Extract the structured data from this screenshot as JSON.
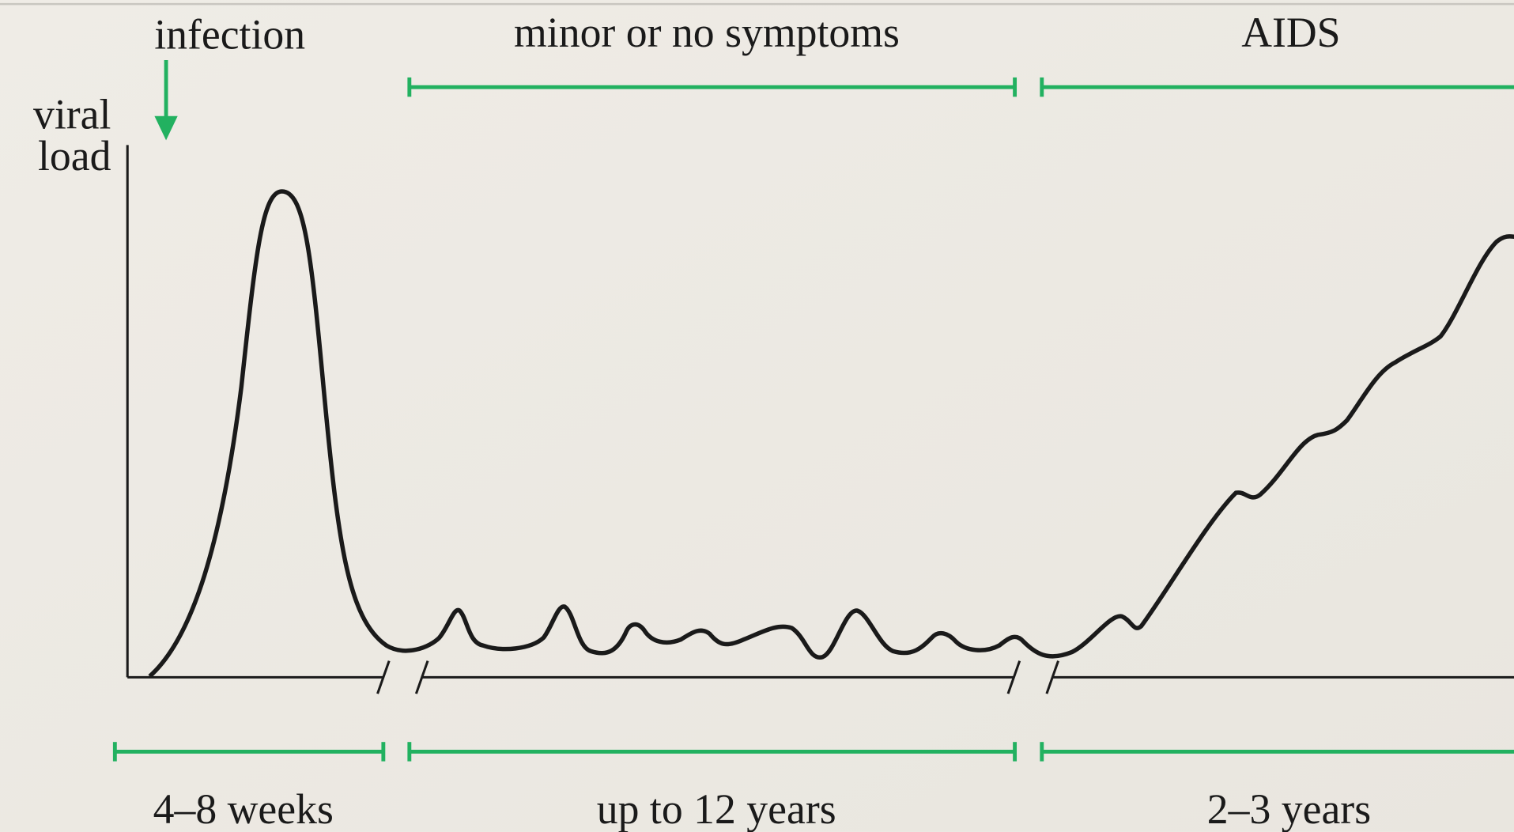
{
  "y_axis_label": [
    "viral",
    "load"
  ],
  "phases": [
    {
      "event": "infection",
      "duration": "4–8 weeks"
    },
    {
      "event": "minor or no symptoms",
      "duration": "up to 12 years"
    },
    {
      "event": "AIDS",
      "duration": "2–3 years"
    }
  ]
}
